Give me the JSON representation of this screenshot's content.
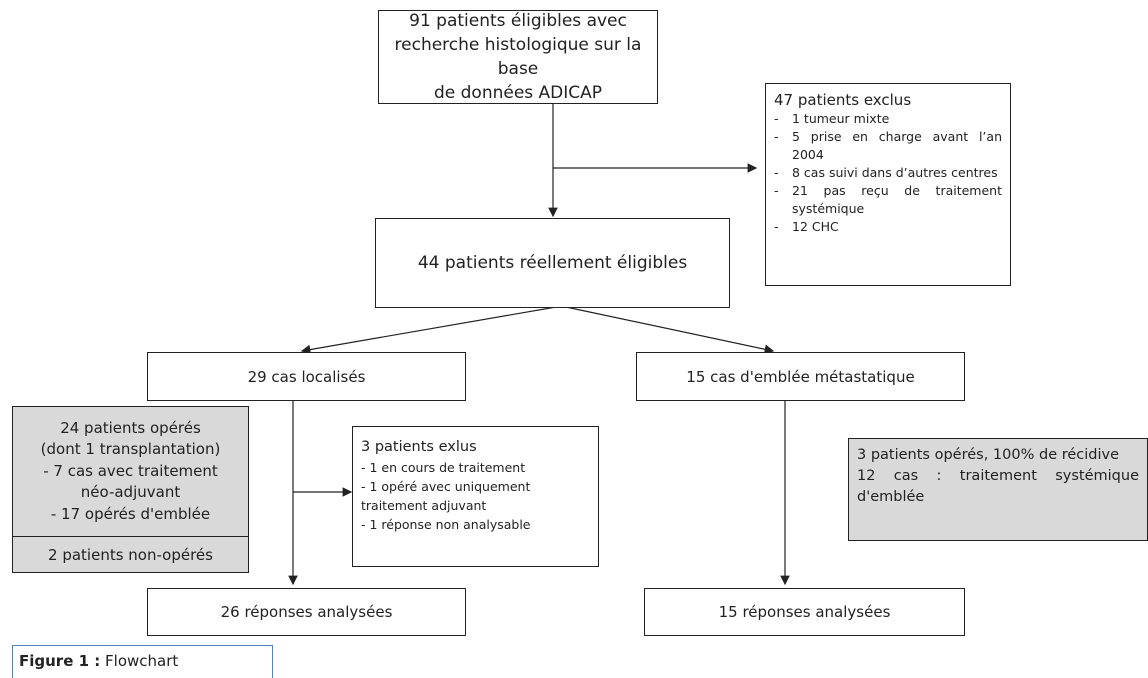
{
  "top_box": {
    "lines": [
      "91 patients éligibles avec",
      "recherche histologique sur la base",
      "de données ADICAP"
    ]
  },
  "excluded_box": {
    "title": "47 patients exclus",
    "marker": "-",
    "items": [
      "1 tumeur mixte",
      "5 prise en charge avant l’an 2004",
      "8 cas suivi dans d’autres centres",
      "21 pas reçu de traitement systémique",
      "12 CHC"
    ]
  },
  "eligible_box": {
    "text": "44 patients réellement éligibles"
  },
  "localized_box": {
    "text": "29 cas localisés"
  },
  "metastatic_box": {
    "text": "15 cas d'emblée métastatique"
  },
  "operated_box": {
    "lines": [
      "24 patients opérés",
      "(dont 1 transplantation)",
      "- 7 cas avec traitement",
      "néo-adjuvant",
      "- 17 opérés d'emblée"
    ],
    "footer": "2 patients non-opérés"
  },
  "excluded_local_box": {
    "title": "3 patients exlus",
    "lines": [
      "- 1 en cours de traitement",
      "- 1 opéré avec uniquement",
      "traitement adjuvant",
      "- 1 réponse non analysable"
    ]
  },
  "metastatic_detail_box": {
    "paragraphs": [
      "3 patients opérés, 100% de récidive",
      "12 cas : traitement systémique d'emblée"
    ]
  },
  "localized_result_box": {
    "text": "26 réponses analysées"
  },
  "metastatic_result_box": {
    "text": "15 réponses analysées"
  },
  "caption": {
    "label": "Figure 1 :",
    "text": "Flowchart"
  }
}
